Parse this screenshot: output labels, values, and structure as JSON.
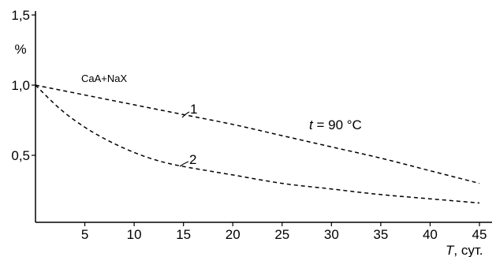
{
  "chart_data": {
    "type": "line",
    "xlabel_var": "T",
    "xlabel_unit": ", сут.",
    "ylabel": "%",
    "xlim": [
      0,
      46
    ],
    "ylim": [
      0.1,
      1.5
    ],
    "x_ticks": [
      {
        "value": 5,
        "label": "5"
      },
      {
        "value": 10,
        "label": "10"
      },
      {
        "value": 15,
        "label": "15"
      },
      {
        "value": 20,
        "label": "20"
      },
      {
        "value": 25,
        "label": "25"
      },
      {
        "value": 30,
        "label": "30"
      },
      {
        "value": 35,
        "label": "35"
      },
      {
        "value": 40,
        "label": "40"
      },
      {
        "value": 45,
        "label": "45"
      }
    ],
    "y_ticks": [
      {
        "value": 0.5,
        "label": "0,5"
      },
      {
        "value": 1.0,
        "label": "1,0"
      },
      {
        "value": 1.5,
        "label": "1,5"
      }
    ],
    "grid": false,
    "line_style": "dashed",
    "series": [
      {
        "name": "1",
        "x": [
          0,
          5,
          10,
          15,
          20,
          25,
          30,
          35,
          40,
          45
        ],
        "y": [
          1.0,
          0.93,
          0.86,
          0.79,
          0.72,
          0.64,
          0.56,
          0.48,
          0.39,
          0.3
        ]
      },
      {
        "name": "2",
        "x": [
          0,
          2.5,
          5,
          7.5,
          10,
          12.5,
          15,
          17.5,
          20,
          25,
          30,
          35,
          40,
          45
        ],
        "y": [
          1.0,
          0.83,
          0.7,
          0.6,
          0.52,
          0.46,
          0.42,
          0.39,
          0.36,
          0.3,
          0.26,
          0.22,
          0.19,
          0.16
        ]
      }
    ],
    "annotations": {
      "sample": "CaA+NaX",
      "temp_var": "t",
      "temp_value": " = 90 °C"
    }
  }
}
